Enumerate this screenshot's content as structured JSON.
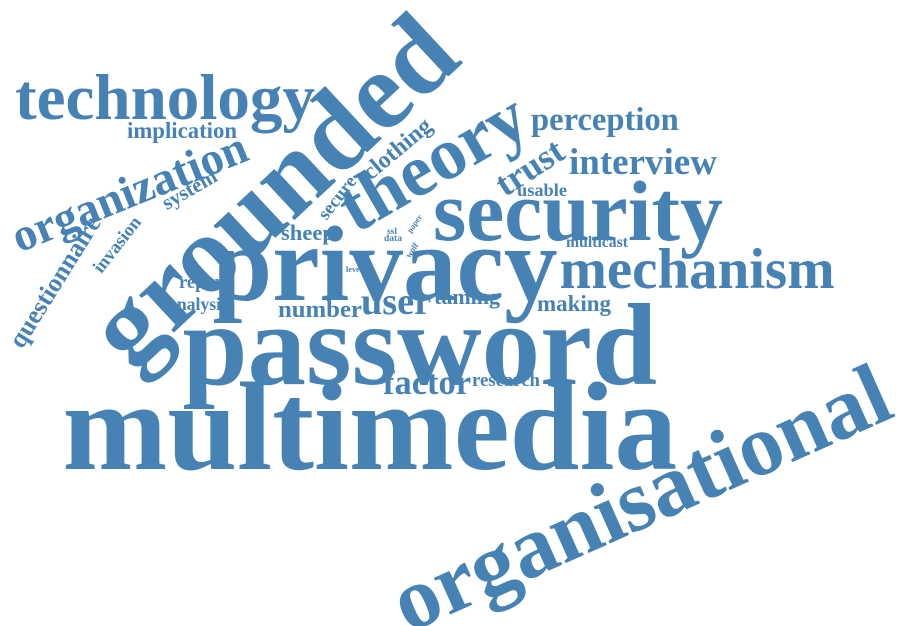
{
  "word_color": "#4682b4",
  "words": [
    {
      "text": "multimedia",
      "weight": 100
    },
    {
      "text": "password",
      "weight": 92
    },
    {
      "text": "grounded",
      "weight": 90
    },
    {
      "text": "privacy",
      "weight": 85
    },
    {
      "text": "organisational",
      "weight": 70
    },
    {
      "text": "theory",
      "weight": 55
    },
    {
      "text": "security",
      "weight": 55
    },
    {
      "text": "technology",
      "weight": 48
    },
    {
      "text": "mechanism",
      "weight": 40
    },
    {
      "text": "organization",
      "weight": 38
    },
    {
      "text": "factor",
      "weight": 22
    },
    {
      "text": "perception",
      "weight": 24
    },
    {
      "text": "interview",
      "weight": 24
    },
    {
      "text": "trust",
      "weight": 28
    },
    {
      "text": "questionnaire",
      "weight": 18
    },
    {
      "text": "user",
      "weight": 22
    },
    {
      "text": "clothing",
      "weight": 16
    },
    {
      "text": "implication",
      "weight": 14
    },
    {
      "text": "invasion",
      "weight": 14
    },
    {
      "text": "system",
      "weight": 13
    },
    {
      "text": "secure",
      "weight": 12
    },
    {
      "text": "sheep",
      "weight": 13
    },
    {
      "text": "report",
      "weight": 12
    },
    {
      "text": "analysis",
      "weight": 11
    },
    {
      "text": "number",
      "weight": 14
    },
    {
      "text": "taming",
      "weight": 13
    },
    {
      "text": "making",
      "weight": 13
    },
    {
      "text": "research",
      "weight": 12
    },
    {
      "text": "usable",
      "weight": 11
    },
    {
      "text": "multicast",
      "weight": 11
    },
    {
      "text": "data",
      "weight": 6
    },
    {
      "text": "paper",
      "weight": 6
    },
    {
      "text": "level",
      "weight": 6
    },
    {
      "text": "wolf",
      "weight": 6
    },
    {
      "text": "ssl",
      "weight": 5
    }
  ]
}
